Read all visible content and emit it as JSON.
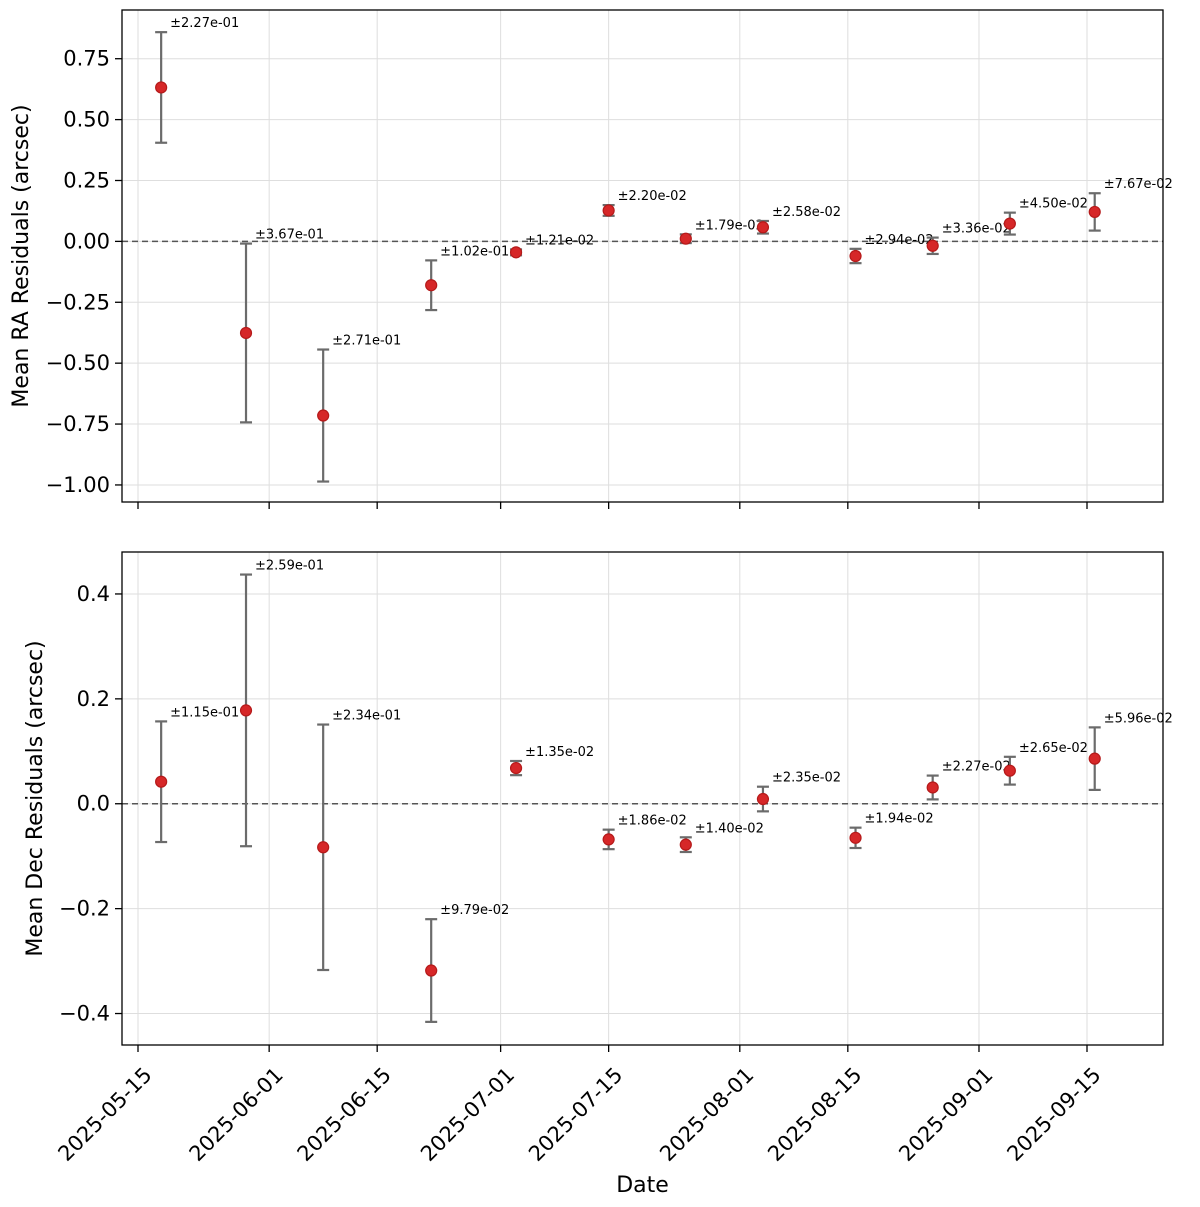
{
  "chart_data": [
    {
      "type": "scatter",
      "ylabel": "Mean RA Residuals (arcsec)",
      "ylim": [
        -1.07,
        0.95
      ],
      "yticks": [
        0.75,
        0.5,
        0.25,
        0.0,
        -0.25,
        -0.5,
        -0.75,
        -1.0
      ],
      "ytick_labels": [
        "0.75",
        "0.50",
        "0.25",
        "0.00",
        "−0.25",
        "−0.50",
        "−0.75",
        "−1.00"
      ],
      "reference_line": 0,
      "grid": true,
      "series": [
        {
          "x": [
            "2025-05-18",
            "2025-05-29",
            "2025-06-08",
            "2025-06-22",
            "2025-07-03",
            "2025-07-15",
            "2025-07-25",
            "2025-08-04",
            "2025-08-16",
            "2025-08-26",
            "2025-09-05",
            "2025-09-16"
          ],
          "y": [
            0.632,
            -0.376,
            -0.715,
            -0.18,
            -0.045,
            0.127,
            0.011,
            0.058,
            -0.06,
            -0.018,
            0.073,
            0.121
          ],
          "yerr": [
            0.227,
            0.367,
            0.271,
            0.102,
            0.0121,
            0.022,
            0.0179,
            0.0258,
            0.0294,
            0.0336,
            0.045,
            0.0767
          ],
          "labels": [
            "±2.27e-01",
            "±3.67e-01",
            "±2.71e-01",
            "±1.02e-01",
            "±1.21e-02",
            "±2.20e-02",
            "±1.79e-02",
            "±2.58e-02",
            "±2.94e-02",
            "±3.36e-02",
            "±4.50e-02",
            "±7.67e-02"
          ]
        }
      ]
    },
    {
      "type": "scatter",
      "ylabel": "Mean Dec Residuals (arcsec)",
      "xlabel": "Date",
      "ylim": [
        -0.46,
        0.48
      ],
      "yticks": [
        0.4,
        0.2,
        0.0,
        -0.2,
        -0.4
      ],
      "ytick_labels": [
        "0.4",
        "0.2",
        "0.0",
        "−0.2",
        "−0.4"
      ],
      "xticks": [
        "2025-05-15",
        "2025-06-01",
        "2025-06-15",
        "2025-07-01",
        "2025-07-15",
        "2025-08-01",
        "2025-08-15",
        "2025-09-01",
        "2025-09-15"
      ],
      "reference_line": 0,
      "grid": true,
      "series": [
        {
          "x": [
            "2025-05-18",
            "2025-05-29",
            "2025-06-08",
            "2025-06-22",
            "2025-07-03",
            "2025-07-15",
            "2025-07-25",
            "2025-08-04",
            "2025-08-16",
            "2025-08-26",
            "2025-09-05",
            "2025-09-16"
          ],
          "y": [
            0.042,
            0.178,
            -0.083,
            -0.318,
            0.068,
            -0.068,
            -0.078,
            0.009,
            -0.065,
            0.031,
            0.063,
            0.086
          ],
          "yerr": [
            0.115,
            0.259,
            0.234,
            0.0979,
            0.0135,
            0.0186,
            0.014,
            0.0235,
            0.0194,
            0.0227,
            0.0265,
            0.0596
          ],
          "labels": [
            "±1.15e-01",
            "±2.59e-01",
            "±2.34e-01",
            "±9.79e-02",
            "±1.35e-02",
            "±1.86e-02",
            "±1.40e-02",
            "±2.35e-02",
            "±1.94e-02",
            "±2.27e-02",
            "±2.65e-02",
            "±5.96e-02"
          ]
        }
      ]
    }
  ],
  "style": {
    "point_color": "#d62728",
    "errorbar_color": "#6b6b6b",
    "zero_line_color": "#555555"
  }
}
